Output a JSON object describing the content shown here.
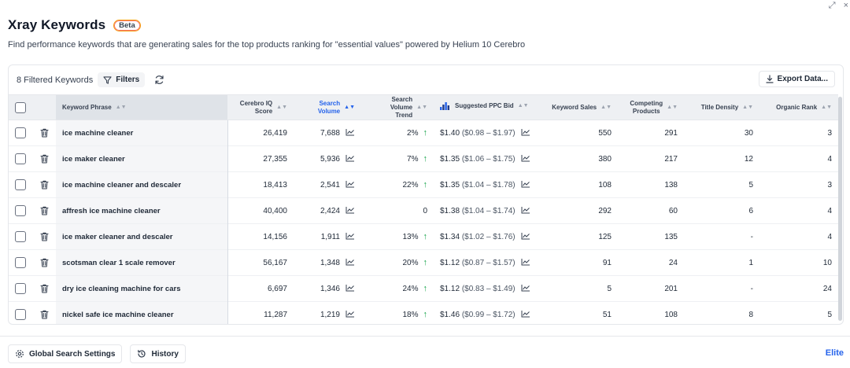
{
  "window": {
    "expand_glyph": "⤢",
    "close_glyph": "×"
  },
  "header": {
    "title": "Xray Keywords",
    "badge": "Beta",
    "subtitle": "Find performance keywords that are generating sales for the top products ranking for \"essential values\" powered by Helium 10 Cerebro"
  },
  "toolbar": {
    "count_label": "8 Filtered Keywords",
    "filters_label": "Filters",
    "export_label": "Export Data..."
  },
  "table": {
    "headers": {
      "phrase": "Keyword Phrase",
      "cerebro": [
        "Cerebro IQ",
        "Score"
      ],
      "volume": "Search Volume",
      "trend": [
        "Search Volume",
        "Trend"
      ],
      "ppc": "Suggested PPC Bid",
      "sales": "Keyword Sales",
      "competing": [
        "Competing",
        "Products"
      ],
      "density": "Title Density",
      "organic": "Organic Rank"
    },
    "rows": [
      {
        "phrase": "ice machine cleaner",
        "cerebro": "26,419",
        "volume": "7,688",
        "trend": "2%",
        "trend_up": true,
        "ppc": "$1.40",
        "range": "($0.98 – $1.97)",
        "sales": "550",
        "competing": "291",
        "density": "30",
        "organic": "3"
      },
      {
        "phrase": "ice maker cleaner",
        "cerebro": "27,355",
        "volume": "5,936",
        "trend": "7%",
        "trend_up": true,
        "ppc": "$1.35",
        "range": "($1.06 – $1.75)",
        "sales": "380",
        "competing": "217",
        "density": "12",
        "organic": "4"
      },
      {
        "phrase": "ice machine cleaner and descaler",
        "cerebro": "18,413",
        "volume": "2,541",
        "trend": "22%",
        "trend_up": true,
        "ppc": "$1.35",
        "range": "($1.04 – $1.78)",
        "sales": "108",
        "competing": "138",
        "density": "5",
        "organic": "3"
      },
      {
        "phrase": "affresh ice machine cleaner",
        "cerebro": "40,400",
        "volume": "2,424",
        "trend": "0",
        "trend_up": false,
        "ppc": "$1.38",
        "range": "($1.04 – $1.74)",
        "sales": "292",
        "competing": "60",
        "density": "6",
        "organic": "4"
      },
      {
        "phrase": "ice maker cleaner and descaler",
        "cerebro": "14,156",
        "volume": "1,911",
        "trend": "13%",
        "trend_up": true,
        "ppc": "$1.34",
        "range": "($1.02 – $1.76)",
        "sales": "125",
        "competing": "135",
        "density": "-",
        "organic": "4"
      },
      {
        "phrase": "scotsman clear 1 scale remover",
        "cerebro": "56,167",
        "volume": "1,348",
        "trend": "20%",
        "trend_up": true,
        "ppc": "$1.12",
        "range": "($0.87 – $1.57)",
        "sales": "91",
        "competing": "24",
        "density": "1",
        "organic": "10"
      },
      {
        "phrase": "dry ice cleaning machine for cars",
        "cerebro": "6,697",
        "volume": "1,346",
        "trend": "24%",
        "trend_up": true,
        "ppc": "$1.12",
        "range": "($0.83 – $1.49)",
        "sales": "5",
        "competing": "201",
        "density": "-",
        "organic": "24"
      },
      {
        "phrase": "nickel safe ice machine cleaner",
        "cerebro": "11,287",
        "volume": "1,219",
        "trend": "18%",
        "trend_up": true,
        "ppc": "$1.46",
        "range": "($0.99 – $1.72)",
        "sales": "51",
        "competing": "108",
        "density": "8",
        "organic": "5"
      }
    ]
  },
  "footer": {
    "global_settings_label": "Global Search Settings",
    "history_label": "History",
    "plan_label": "Elite"
  },
  "colors": {
    "accent": "#2563eb",
    "trend_up": "#16a34a",
    "badge_border": "#f59e0b"
  }
}
